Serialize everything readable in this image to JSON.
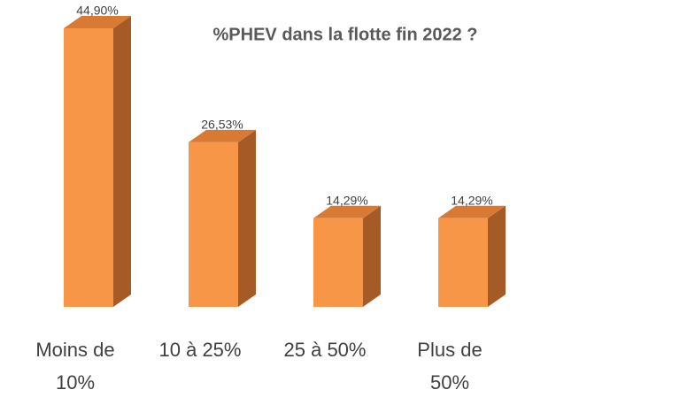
{
  "chart_data": {
    "type": "bar3d",
    "title": "%PHEV dans la flotte fin 2022 ?",
    "categories": [
      "Moins de 10%",
      "10 à 25%",
      "25 à 50%",
      "Plus de 50%"
    ],
    "values": [
      44.9,
      26.53,
      14.29,
      14.29
    ],
    "value_labels": [
      "44,90%",
      "26,53%",
      "14,29%",
      "14,29%"
    ],
    "color": "#f79646"
  }
}
